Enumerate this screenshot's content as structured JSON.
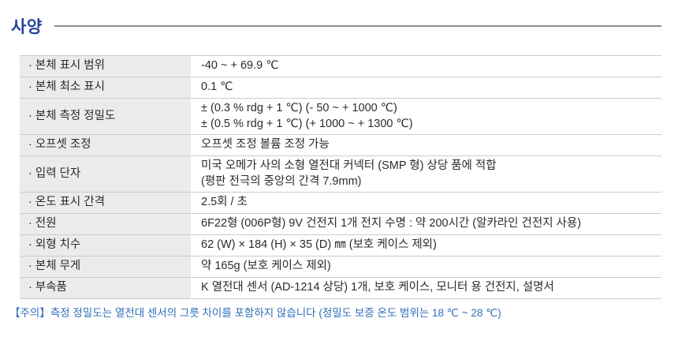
{
  "page": {
    "title": "사양"
  },
  "colors": {
    "title_navy": "#24419b",
    "note_blue": "#2e6db8",
    "label_bg": "#ebebeb",
    "row_border": "#cccccc",
    "rule_gray": "#8e8e8e",
    "text": "#2b2b2b"
  },
  "spec_table": {
    "rows": [
      {
        "label": "· 본체 표시 범위",
        "value": "-40 ~ + 69.9 ℃"
      },
      {
        "label": "· 본체 최소 표시",
        "value": "0.1 ℃"
      },
      {
        "label": "· 본체 측정 정밀도",
        "value": "± (0.3 % rdg + 1 ℃) (- 50 ~ + 1000 ℃)\n± (0.5 % rdg + 1 ℃) (+ 1000 ~ + 1300 ℃)"
      },
      {
        "label": "· 오프셋 조정",
        "value": "오프셋 조정 볼륨 조정 가능"
      },
      {
        "label": "· 입력 단자",
        "value": "미국 오메가 사의 소형 열전대 커넥터 (SMP 형) 상당 품에 적합\n(평판 전극의 중앙의 간격 7.9mm)"
      },
      {
        "label": "· 온도 표시 간격",
        "value": "2.5회 / 초"
      },
      {
        "label": "· 전원",
        "value": "6F22형 (006P형) 9V 건전지 1개 전지 수명 : 약 200시간 (알카라인 건전지 사용)"
      },
      {
        "label": "· 외형 치수",
        "value": "62 (W) × 184 (H) × 35 (D) ㎜ (보호 케이스 제외)"
      },
      {
        "label": "· 본체 무게",
        "value": "약 165g (보호 케이스 제외)"
      },
      {
        "label": "· 부속품",
        "value": "K 열전대 센서 (AD-1214 상당) 1개, 보호 케이스, 모니터 용 건전지, 설명서"
      }
    ]
  },
  "note": {
    "text": "【주의】측정 정밀도는 열전대 센서의 그릇 차이를 포함하지 않습니다 (정밀도 보증 온도 범위는 18 ℃ ~ 28 ℃)"
  }
}
